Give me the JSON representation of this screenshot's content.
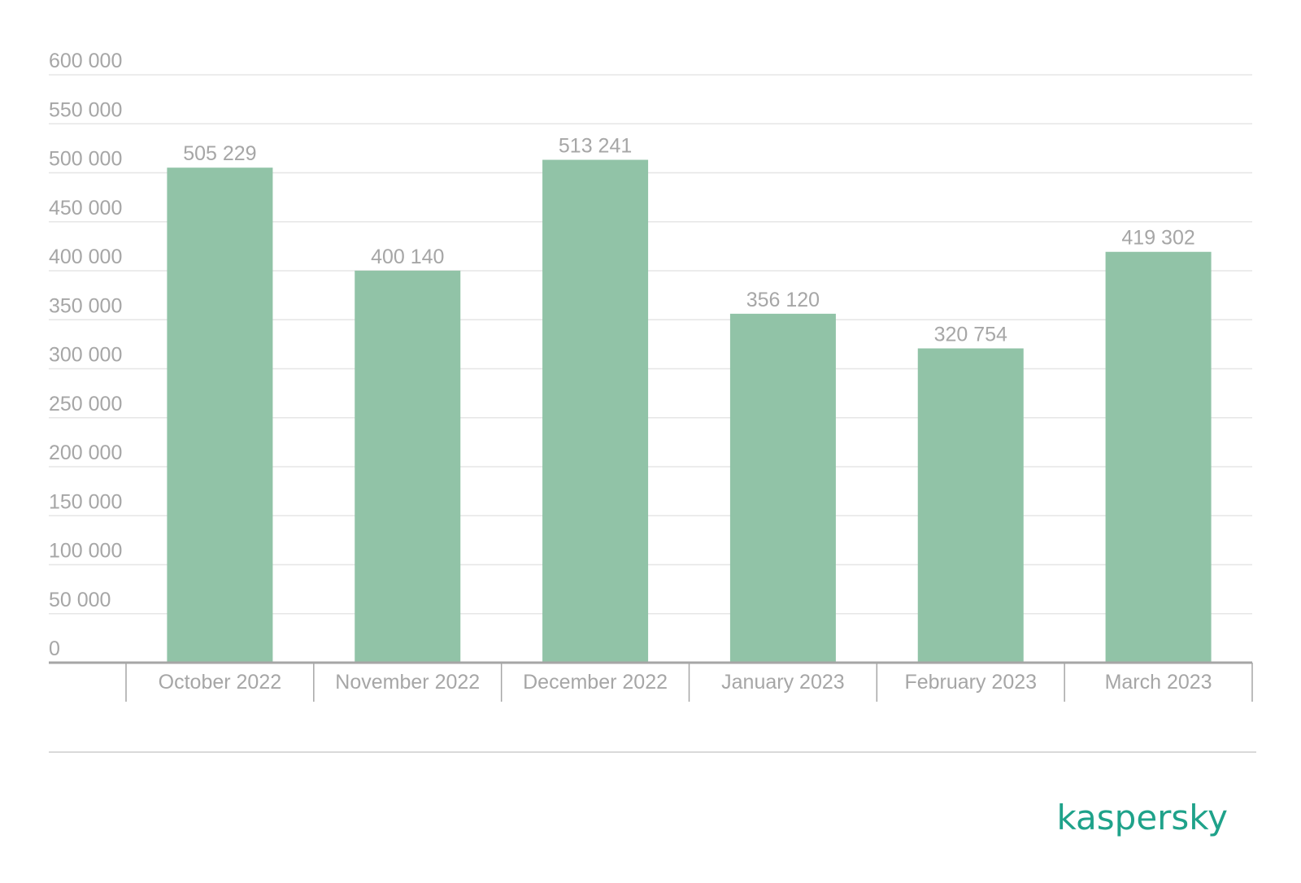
{
  "chart_data": {
    "type": "bar",
    "categories": [
      "October 2022",
      "November 2022",
      "December 2022",
      "January 2023",
      "February 2023",
      "March 2023"
    ],
    "values": [
      505229,
      400140,
      513241,
      356120,
      320754,
      419302
    ],
    "value_labels": [
      "505 229",
      "400 140",
      "513 241",
      "356 120",
      "320 754",
      "419 302"
    ],
    "ylim": [
      0,
      600000
    ],
    "yticks": [
      0,
      50000,
      100000,
      150000,
      200000,
      250000,
      300000,
      350000,
      400000,
      450000,
      500000,
      550000,
      600000
    ],
    "ytick_labels": [
      "0",
      "50 000",
      "100 000",
      "150 000",
      "200 000",
      "250 000",
      "300 000",
      "350 000",
      "400 000",
      "450 000",
      "500 000",
      "550 000",
      "600 000"
    ],
    "grid": true,
    "title": "",
    "xlabel": "",
    "ylabel": ""
  },
  "colors": {
    "bar": "#91c3a7",
    "grid": "#e6e6e6",
    "axis": "#a6a6a6",
    "text": "#a6a6a6",
    "logo": "#1fa28a"
  },
  "logo": {
    "text": "kaspersky"
  }
}
